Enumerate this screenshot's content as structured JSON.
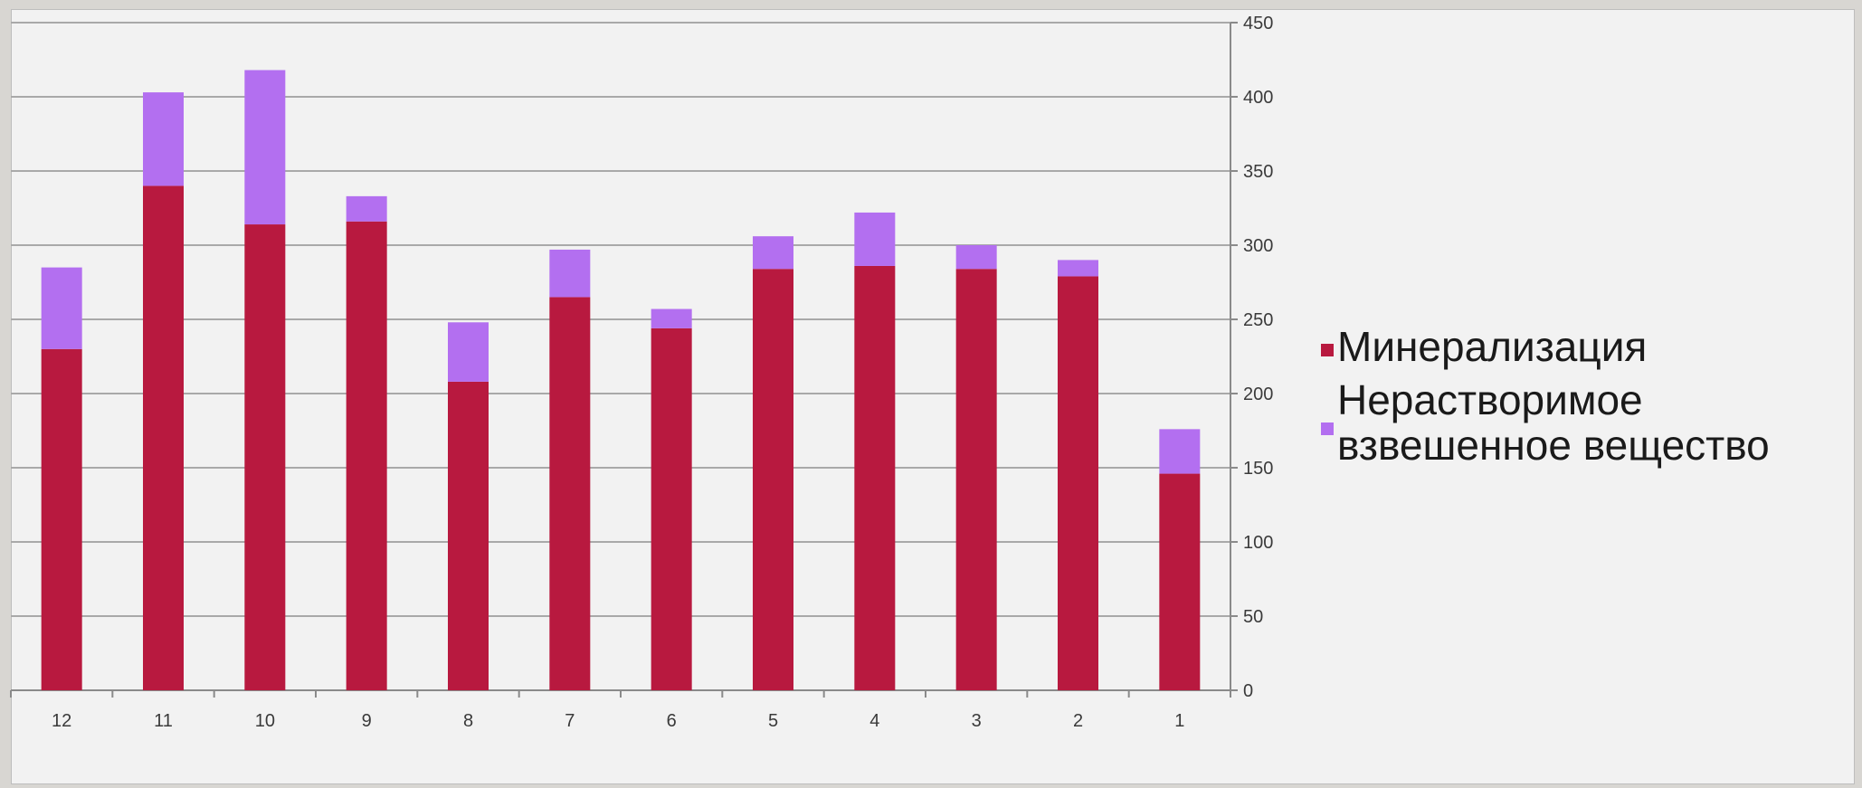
{
  "chart_data": {
    "type": "bar",
    "stacked": true,
    "categories": [
      "12",
      "11",
      "10",
      "9",
      "8",
      "7",
      "6",
      "5",
      "4",
      "3",
      "2",
      "1"
    ],
    "series": [
      {
        "name": "Минерализация",
        "color": "#b8193f",
        "values": [
          230,
          340,
          314,
          316,
          208,
          265,
          244,
          284,
          286,
          284,
          279,
          146
        ]
      },
      {
        "name": "Нерастворимое взвешенное вещество",
        "color": "#b36ff0",
        "values": [
          55,
          63,
          104,
          17,
          40,
          32,
          13,
          22,
          36,
          16,
          11,
          30
        ]
      }
    ],
    "ylim": [
      0,
      450
    ],
    "yticks": [
      0,
      50,
      100,
      150,
      200,
      250,
      300,
      350,
      400,
      450
    ],
    "y_axis_position": "right",
    "grid": true,
    "legend": {
      "placement": "right",
      "entries": [
        {
          "lines": [
            "Минерализация"
          ]
        },
        {
          "lines": [
            "Нерастворимое",
            "взвешенное вещество"
          ]
        }
      ]
    },
    "title": "",
    "xlabel": "",
    "ylabel": ""
  }
}
